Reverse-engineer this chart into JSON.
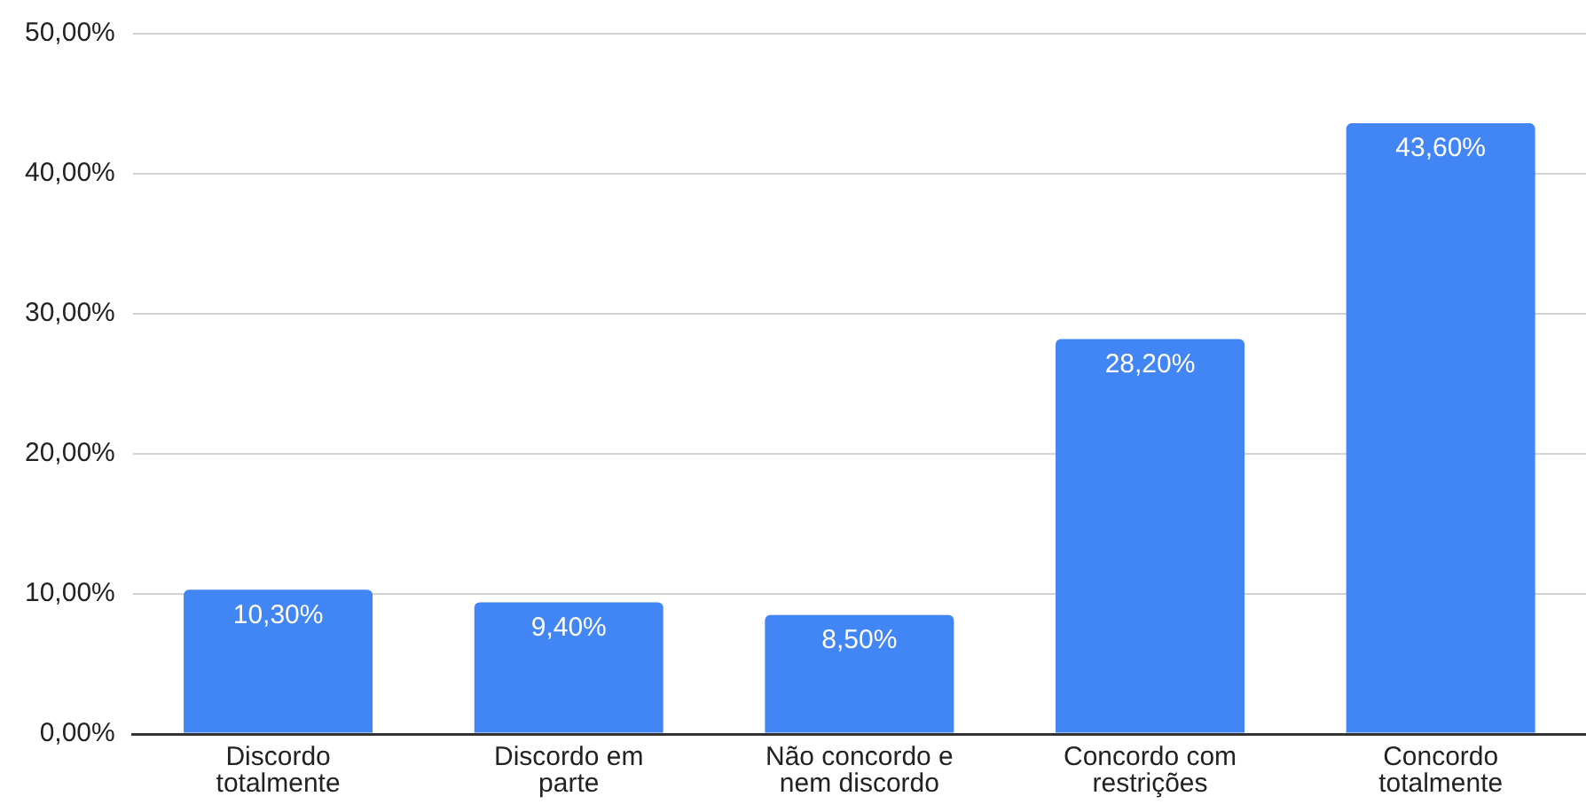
{
  "chart_data": {
    "type": "bar",
    "categories": [
      "Discordo totalmente",
      "Discordo em parte",
      "Não concordo e nem discordo",
      "Concordo com restrições",
      "Concordo totalmente"
    ],
    "values": [
      10.3,
      9.4,
      8.5,
      28.2,
      43.6
    ],
    "value_labels": [
      "10,30%",
      "9,40%",
      "8,50%",
      "28,20%",
      "43,60%"
    ],
    "color": "#4285f4",
    "ylim": [
      0,
      50
    ],
    "yticks": [
      {
        "value": 0,
        "label": "0,00%"
      },
      {
        "value": 10,
        "label": "10,00%"
      },
      {
        "value": 20,
        "label": "20,00%"
      },
      {
        "value": 30,
        "label": "30,00%"
      },
      {
        "value": 40,
        "label": "40,00%"
      },
      {
        "value": 50,
        "label": "50,00%"
      }
    ],
    "grid": "y"
  }
}
